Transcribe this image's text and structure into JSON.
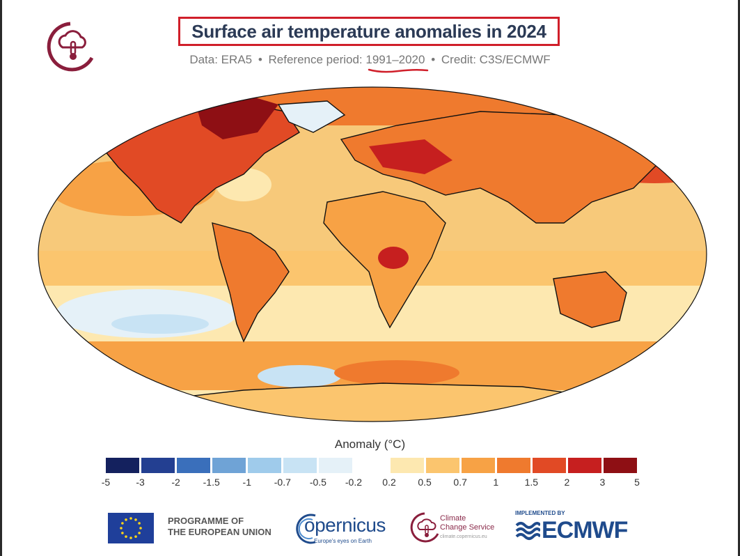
{
  "header": {
    "title": "Surface air temperature anomalies in 2024",
    "subtitle_data": "Data: ERA5",
    "subtitle_reference": "Reference period:",
    "subtitle_period": "1991–2020",
    "subtitle_credit": "Credit: C3S/ECMWF",
    "separator": "•"
  },
  "map": {
    "projection": "Robinson",
    "ocean_base_color": "#f7c97a",
    "land_outline_color": "#111111"
  },
  "legend": {
    "title": "Anomaly (°C)",
    "ticks": [
      "-5",
      "-3",
      "-2",
      "-1.5",
      "-1",
      "-0.7",
      "-0.5",
      "-0.2",
      "0.2",
      "0.5",
      "0.7",
      "1",
      "1.5",
      "2",
      "3",
      "5"
    ],
    "colors": [
      "#14215e",
      "#233f91",
      "#3a6fbb",
      "#6fa3d6",
      "#9fcbeb",
      "#c8e3f4",
      "#e5f1f8",
      "#ffffff",
      "#fde8b0",
      "#fbc56e",
      "#f7a245",
      "#ef7a2e",
      "#e14a25",
      "#c61f1f",
      "#8e0f14"
    ]
  },
  "footer": {
    "eu_line1": "PROGRAMME OF",
    "eu_line2": "THE EUROPEAN UNION",
    "copernicus_word": "opernicus",
    "copernicus_tagline": "Europe's eyes on Earth",
    "ccs_line1": "Climate",
    "ccs_line2": "Change Service",
    "ccs_url": "climate.copernicus.eu",
    "ecmwf_implemented": "IMPLEMENTED BY",
    "ecmwf_word": "ECMWF"
  }
}
